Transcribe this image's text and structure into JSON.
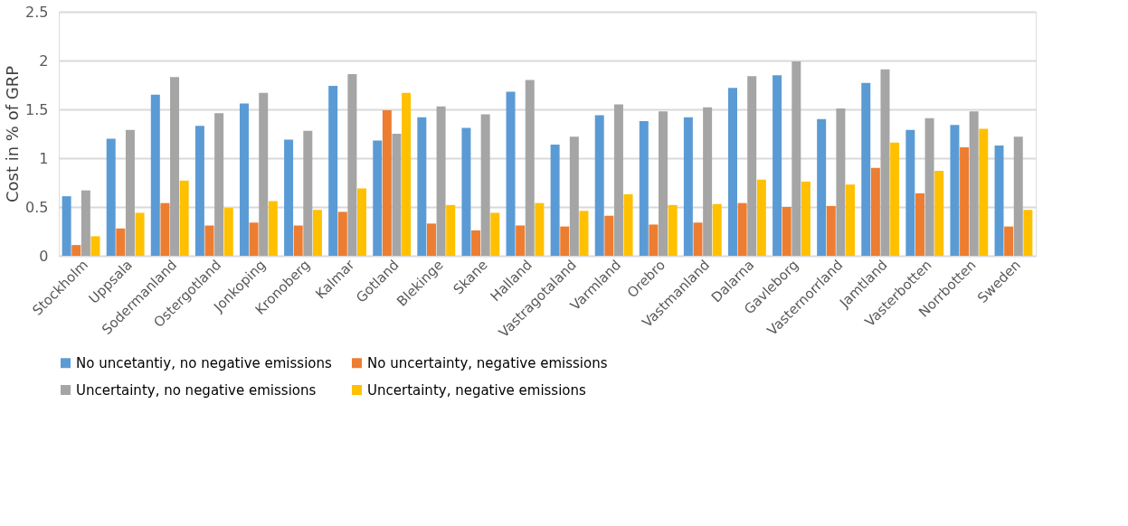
{
  "chart_data": {
    "type": "bar",
    "ylabel": "Cost in % of GRP",
    "categories": [
      "Stockholm",
      "Uppsala",
      "Sodermanland",
      "Ostergotland",
      "Jonkoping",
      "Kronoberg",
      "Kalmar",
      "Gotland",
      "Blekinge",
      "Skane",
      "Halland",
      "Vastragotaland",
      "Varmland",
      "Orebro",
      "Vastmanland",
      "Dalarna",
      "Gavleborg",
      "Vasternorrland",
      "Jamtland",
      "Vasterbotten",
      "Norrbotten",
      "Sweden"
    ],
    "series": [
      {
        "name": "No uncetantiy, no negative emissions",
        "color": "#5b9bd5",
        "values": [
          0.61,
          1.2,
          1.65,
          1.33,
          1.56,
          1.19,
          1.74,
          1.18,
          1.42,
          1.31,
          1.68,
          1.14,
          1.44,
          1.38,
          1.42,
          1.72,
          1.85,
          1.4,
          1.77,
          1.29,
          1.34,
          1.13
        ]
      },
      {
        "name": "No uncertainty, negative emissions",
        "color": "#ed7d31",
        "values": [
          0.11,
          0.28,
          0.54,
          0.31,
          0.34,
          0.31,
          0.45,
          1.49,
          0.33,
          0.26,
          0.31,
          0.3,
          0.41,
          0.32,
          0.34,
          0.54,
          0.5,
          0.51,
          0.9,
          0.64,
          1.11,
          0.3
        ]
      },
      {
        "name": "Uncertainty, no negative emissions",
        "color": "#a5a5a5",
        "values": [
          0.67,
          1.29,
          1.83,
          1.46,
          1.67,
          1.28,
          1.86,
          1.25,
          1.53,
          1.45,
          1.8,
          1.22,
          1.55,
          1.48,
          1.52,
          1.84,
          1.99,
          1.51,
          1.91,
          1.41,
          1.48,
          1.22
        ]
      },
      {
        "name": "Uncertainty,  negative emissions",
        "color": "#ffc000",
        "values": [
          0.2,
          0.44,
          0.77,
          0.49,
          0.56,
          0.47,
          0.69,
          1.67,
          0.52,
          0.44,
          0.54,
          0.46,
          0.63,
          0.52,
          0.53,
          0.78,
          0.76,
          0.73,
          1.16,
          0.87,
          1.3,
          0.47
        ]
      }
    ],
    "ylim": [
      0,
      2.5
    ],
    "yticks": [
      0,
      0.5,
      1,
      1.5,
      2,
      2.5
    ],
    "grid": "y",
    "legend": "bottom"
  }
}
